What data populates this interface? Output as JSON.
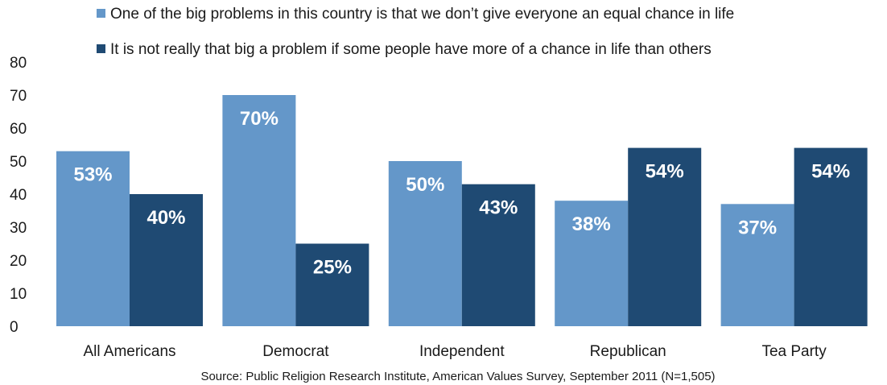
{
  "chart_data": {
    "type": "bar",
    "title": "",
    "xlabel": "",
    "ylabel": "",
    "ylim": [
      0,
      80
    ],
    "yticks": [
      0,
      10,
      20,
      30,
      40,
      50,
      60,
      70,
      80
    ],
    "grid": false,
    "legend_position": "top",
    "categories": [
      "All Americans",
      "Democrat",
      "Independent",
      "Republican",
      "Tea Party"
    ],
    "series": [
      {
        "name": "One of the big problems in this country is that we don’t give everyone an equal chance in life",
        "color": "#6497c9",
        "values": [
          53,
          70,
          50,
          38,
          37
        ],
        "labels": [
          "53%",
          "70%",
          "50%",
          "38%",
          "37%"
        ]
      },
      {
        "name": "It is not really that big a problem if some people have more of a chance in life than others",
        "color": "#1f4a73",
        "values": [
          40,
          25,
          43,
          54,
          54
        ],
        "labels": [
          "40%",
          "25%",
          "43%",
          "54%",
          "54%"
        ]
      }
    ],
    "source": "Source: Public Religion Research Institute, American Values Survey, September 2011 (N=1,505)"
  }
}
